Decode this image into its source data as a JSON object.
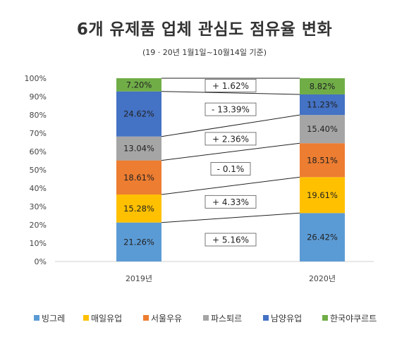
{
  "chart_data": {
    "type": "bar",
    "title": "6개 유제품 업체 관심도 점유율 변화",
    "subtitle": "(19 · 20년 1월1일~10월14일 기준)",
    "categories": [
      "2019년",
      "2020년"
    ],
    "yticks": [
      "0%",
      "10%",
      "20%",
      "30%",
      "40%",
      "50%",
      "60%",
      "70%",
      "80%",
      "90%",
      "100%"
    ],
    "ylim": [
      0,
      100
    ],
    "stacked": true,
    "series": [
      {
        "name": "빙그레",
        "color": "#5B9BD5",
        "values": [
          21.26,
          26.42
        ],
        "labels": [
          "21.26%",
          "26.42%"
        ]
      },
      {
        "name": "매일유업",
        "color": "#FFC000",
        "values": [
          15.28,
          19.61
        ],
        "labels": [
          "15.28%",
          "19.61%"
        ]
      },
      {
        "name": "서울우유",
        "color": "#ED7D31",
        "values": [
          18.61,
          18.51
        ],
        "labels": [
          "18.61%",
          "18.51%"
        ]
      },
      {
        "name": "파스퇴르",
        "color": "#A5A5A5",
        "values": [
          13.04,
          15.4
        ],
        "labels": [
          "13.04%",
          "15.40%"
        ]
      },
      {
        "name": "남양유업",
        "color": "#4472C4",
        "values": [
          24.62,
          11.23
        ],
        "labels": [
          "24.62%",
          "11.23%"
        ]
      },
      {
        "name": "한국야쿠르트",
        "color": "#70AD47",
        "values": [
          7.2,
          8.82
        ],
        "labels": [
          "7.20%",
          "8.82%"
        ]
      }
    ],
    "changes": [
      "+ 5.16%",
      "+ 4.33%",
      "- 0.1%",
      "+ 2.36%",
      "- 13.39%",
      "+ 1.62%"
    ],
    "legend_position": "bottom",
    "grid": false
  }
}
